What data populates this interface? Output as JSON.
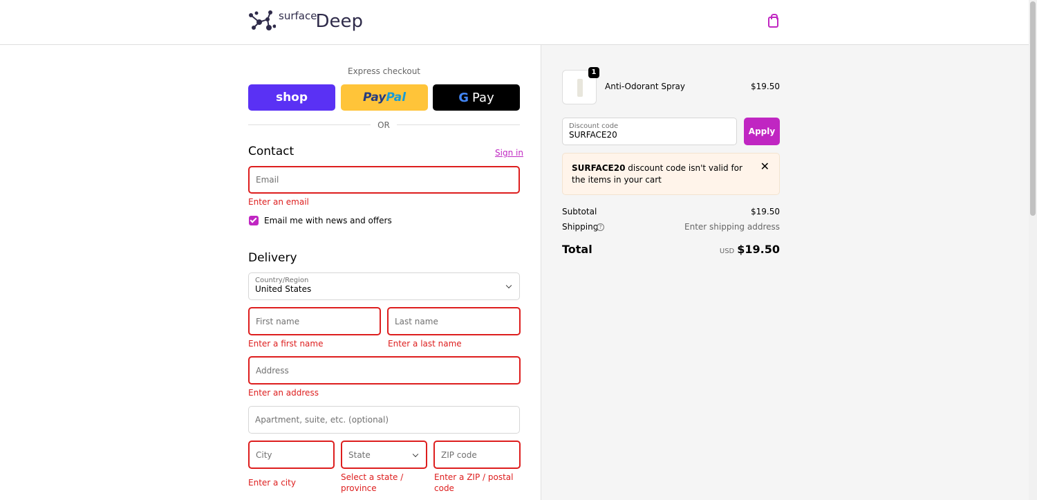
{
  "header": {
    "brand_small": "surface",
    "brand_large": "Deep",
    "cart_icon": "shopping-bag-icon"
  },
  "express": {
    "title": "Express checkout",
    "shop": "shop",
    "paypal_a": "Pay",
    "paypal_b": "Pal",
    "gpay_g": "G",
    "gpay": "Pay",
    "or": "OR"
  },
  "contact": {
    "title": "Contact",
    "sign_in": "Sign in",
    "email_placeholder": "Email",
    "email_error": "Enter an email",
    "newsletter": "Email me with news and offers",
    "newsletter_checked": true
  },
  "delivery": {
    "title": "Delivery",
    "country_label": "Country/Region",
    "country": "United States",
    "first_name": "First name",
    "first_name_error": "Enter a first name",
    "last_name": "Last name",
    "last_name_error": "Enter a last name",
    "address": "Address",
    "address_error": "Enter an address",
    "apartment": "Apartment, suite, etc. (optional)",
    "city": "City",
    "city_error": "Enter a city",
    "state": "State",
    "state_error": "Select a state / province",
    "zip": "ZIP code",
    "zip_error": "Enter a ZIP / postal code"
  },
  "summary": {
    "item": {
      "name": "Anti-Odorant Spray",
      "price": "$19.50",
      "quantity": "1"
    },
    "discount_label": "Discount code",
    "discount_value": "SURFACE20",
    "apply": "Apply",
    "alert_code": "SURFACE20",
    "alert_text": " discount code isn't valid for the items in your cart",
    "subtotal_label": "Subtotal",
    "subtotal": "$19.50",
    "shipping_label": "Shipping",
    "shipping": "Enter shipping address",
    "total_label": "Total",
    "currency": "USD",
    "total": "$19.50"
  },
  "colors": {
    "accent": "#c026c2",
    "error": "#dd1d1d",
    "shop": "#5a31f4",
    "paypal": "#ffc439"
  }
}
